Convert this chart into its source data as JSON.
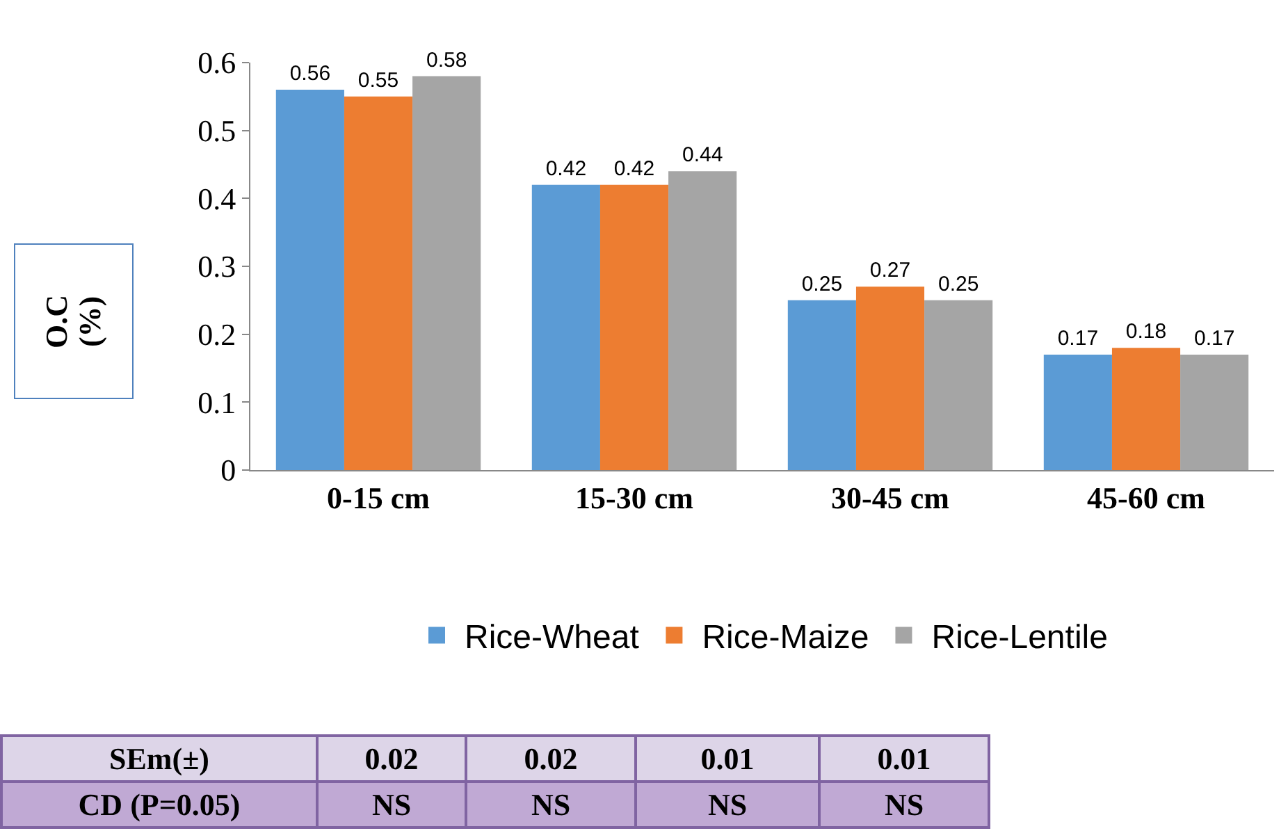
{
  "chart_data": {
    "type": "bar",
    "ylabel": "O.C\n(%)",
    "categories": [
      "0-15 cm",
      "15-30 cm",
      "30-45 cm",
      "45-60 cm"
    ],
    "series": [
      {
        "name": "Rice-Wheat",
        "color": "#5b9bd5",
        "values": [
          0.56,
          0.42,
          0.25,
          0.17
        ]
      },
      {
        "name": "Rice-Maize",
        "color": "#ed7d31",
        "values": [
          0.55,
          0.42,
          0.27,
          0.18
        ]
      },
      {
        "name": "Rice-Lentile",
        "color": "#a5a5a5",
        "values": [
          0.58,
          0.44,
          0.25,
          0.17
        ]
      }
    ],
    "ylim": [
      0,
      0.6
    ],
    "yticks": [
      0,
      0.1,
      0.2,
      0.3,
      0.4,
      0.5,
      0.6
    ],
    "grid": false,
    "legend": "bottom",
    "data_labels": true,
    "annotations": [
      "SEm(±)",
      "0.02",
      "0.02",
      "0.01",
      "0.01",
      "CD (P=0.05)",
      "NS",
      "NS",
      "NS",
      "NS"
    ]
  }
}
